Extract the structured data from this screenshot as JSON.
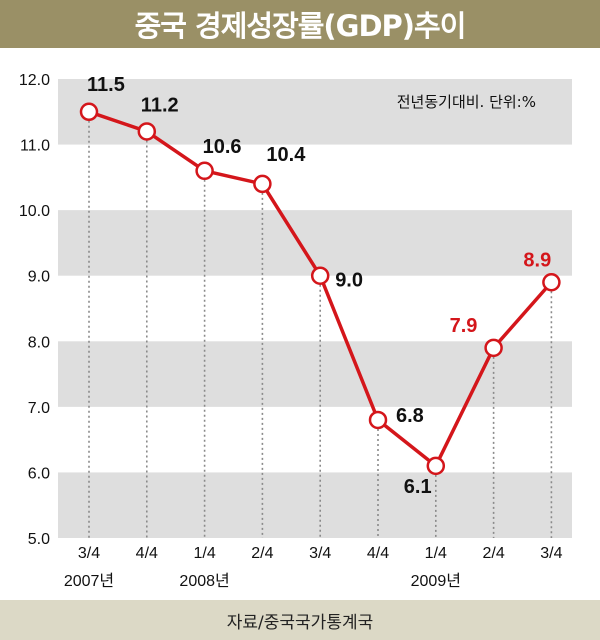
{
  "title": "중국 경제성장률(GDP)추이",
  "unit_note": "전년동기대비. 단위:%",
  "source": "자료/중국국가통계국",
  "colors": {
    "title_bg": "#9a9066",
    "band": "#dedede",
    "line": "#d4161b",
    "label_default": "#111111",
    "label_highlight": "#d4161b",
    "source_bg": "#dcd9c6"
  },
  "chart_data": {
    "type": "line",
    "title": "중국 경제성장률(GDP)추이",
    "categories": [
      "3/4",
      "4/4",
      "1/4",
      "2/4",
      "3/4",
      "4/4",
      "1/4",
      "2/4",
      "3/4"
    ],
    "year_labels": [
      {
        "index": 0,
        "label": "2007년"
      },
      {
        "index": 2,
        "label": "2008년"
      },
      {
        "index": 6,
        "label": "2009년"
      }
    ],
    "values": [
      11.5,
      11.2,
      10.6,
      10.4,
      9.0,
      6.8,
      6.1,
      7.9,
      8.9
    ],
    "data_labels": [
      "11.5",
      "11.2",
      "10.6",
      "10.4",
      "9.0",
      "6.8",
      "6.1",
      "7.9",
      "8.9"
    ],
    "highlighted_labels": [
      7,
      8
    ],
    "ylim": [
      5.0,
      12.0
    ],
    "yticks": [
      "5.0",
      "6.0",
      "7.0",
      "8.0",
      "9.0",
      "10.0",
      "11.0",
      "12.0"
    ],
    "grid": "alternating horizontal bands",
    "legend": "none"
  }
}
